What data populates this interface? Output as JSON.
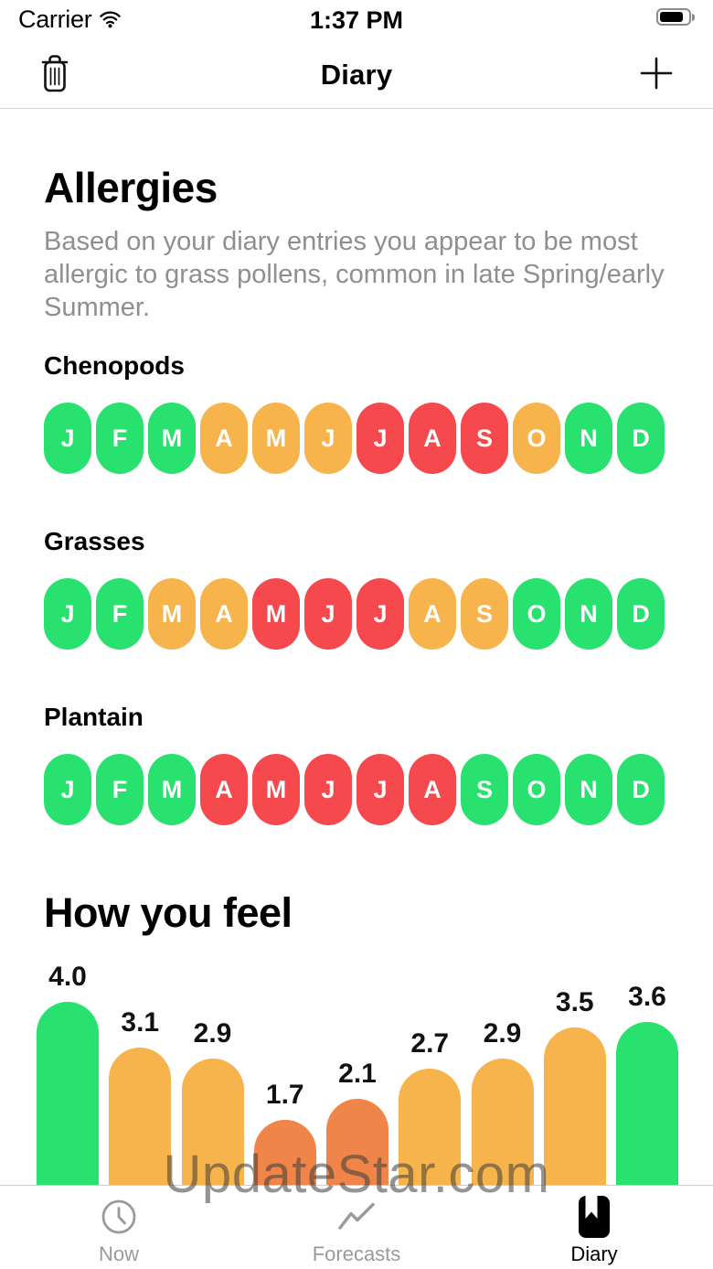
{
  "status_bar": {
    "carrier": "Carrier",
    "time": "1:37 PM"
  },
  "nav_bar": {
    "title": "Diary"
  },
  "allergies": {
    "title": "Allergies",
    "description": "Based on your diary entries you appear to be most allergic to grass pollens, common in late Spring/early Summer.",
    "months": [
      "J",
      "F",
      "M",
      "A",
      "M",
      "J",
      "J",
      "A",
      "S",
      "O",
      "N",
      "D"
    ],
    "levels": {
      "low": "#28E16E",
      "medium": "#F7B44C",
      "high": "#F5494E"
    },
    "sections": [
      {
        "name": "Chenopods",
        "month_levels": [
          "low",
          "low",
          "low",
          "medium",
          "medium",
          "medium",
          "high",
          "high",
          "high",
          "medium",
          "low",
          "low"
        ]
      },
      {
        "name": "Grasses",
        "month_levels": [
          "low",
          "low",
          "medium",
          "medium",
          "high",
          "high",
          "high",
          "medium",
          "medium",
          "low",
          "low",
          "low"
        ]
      },
      {
        "name": "Plantain",
        "month_levels": [
          "low",
          "low",
          "low",
          "high",
          "high",
          "high",
          "high",
          "high",
          "low",
          "low",
          "low",
          "low"
        ]
      }
    ]
  },
  "chart_data": {
    "type": "bar",
    "title": "How you feel",
    "values": [
      4.0,
      3.1,
      2.9,
      1.7,
      2.1,
      2.7,
      2.9,
      3.5,
      3.6
    ],
    "labels": [
      "4.0",
      "3.1",
      "2.9",
      "1.7",
      "2.1",
      "2.7",
      "2.9",
      "3.5",
      "3.6"
    ],
    "colors": [
      "#28E16E",
      "#F7B44C",
      "#F7B44C",
      "#F08549",
      "#F08549",
      "#F7B44C",
      "#F7B44C",
      "#F7B44C",
      "#28E16E"
    ],
    "xlabel": "",
    "ylabel": "",
    "ylim": [
      0,
      5
    ],
    "grid": false,
    "legend": "none"
  },
  "watermark": "UpdateStar.com",
  "tab_bar": {
    "items": [
      {
        "label": "Now",
        "icon": "clock-icon",
        "active": false
      },
      {
        "label": "Forecasts",
        "icon": "trend-icon",
        "active": false
      },
      {
        "label": "Diary",
        "icon": "book-icon",
        "active": true
      }
    ]
  }
}
